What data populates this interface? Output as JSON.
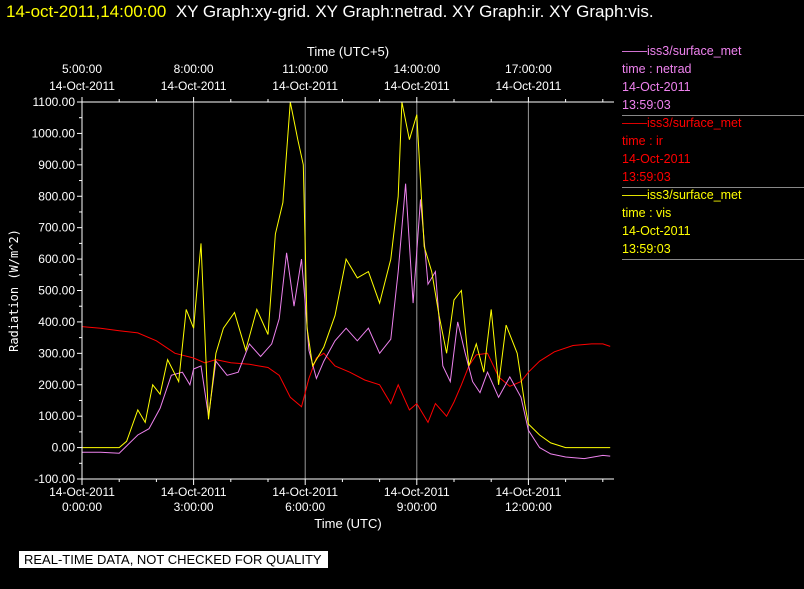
{
  "header": {
    "timestamp": "14-oct-2011,14:00:00",
    "graph_list": "XY Graph:xy-grid.  XY Graph:netrad.  XY Graph:ir.  XY Graph:vis."
  },
  "banner": "REAL-TIME DATA, NOT CHECKED FOR QUALITY",
  "chart_data": {
    "type": "line",
    "title": "",
    "xlabel": "Time (UTC)",
    "x2label": "Time (UTC+5)",
    "ylabel": "Radiation (W/m^2)",
    "xlim": [
      0,
      14.3
    ],
    "ylim": [
      -100,
      1100
    ],
    "grid": true,
    "legend_position": "right",
    "y_ticks": [
      "1100.00",
      "1000.00",
      "900.00",
      "800.00",
      "700.00",
      "600.00",
      "500.00",
      "400.00",
      "300.00",
      "200.00",
      "100.00",
      "0.00",
      "-100.00"
    ],
    "y_tick_values": [
      1100,
      1000,
      900,
      800,
      700,
      600,
      500,
      400,
      300,
      200,
      100,
      0,
      -100
    ],
    "x_ticks": [
      {
        "h": 0,
        "date": "14-Oct-2011",
        "time": "0:00:00"
      },
      {
        "h": 3,
        "date": "14-Oct-2011",
        "time": "3:00:00"
      },
      {
        "h": 6,
        "date": "14-Oct-2011",
        "time": "6:00:00"
      },
      {
        "h": 9,
        "date": "14-Oct-2011",
        "time": "9:00:00"
      },
      {
        "h": 12,
        "date": "14-Oct-2011",
        "time": "12:00:00"
      }
    ],
    "x2_ticks": [
      {
        "h": 0,
        "time": "5:00:00",
        "date": "14-Oct-2011"
      },
      {
        "h": 3,
        "time": "8:00:00",
        "date": "14-Oct-2011"
      },
      {
        "h": 6,
        "time": "11:00:00",
        "date": "14-Oct-2011"
      },
      {
        "h": 9,
        "time": "14:00:00",
        "date": "14-Oct-2011"
      },
      {
        "h": 12,
        "time": "17:00:00",
        "date": "14-Oct-2011"
      }
    ],
    "series": [
      {
        "color": "#ff0000",
        "legend": [
          "——iss3/surface_met",
          "time : ir",
          "14-Oct-2011",
          "13:59:03"
        ],
        "points": [
          [
            0,
            385
          ],
          [
            0.5,
            380
          ],
          [
            1,
            372
          ],
          [
            1.5,
            365
          ],
          [
            2,
            340
          ],
          [
            2.5,
            300
          ],
          [
            3,
            285
          ],
          [
            3.3,
            270
          ],
          [
            3.6,
            280
          ],
          [
            4,
            270
          ],
          [
            4.5,
            265
          ],
          [
            5,
            255
          ],
          [
            5.3,
            230
          ],
          [
            5.6,
            160
          ],
          [
            5.9,
            130
          ],
          [
            6.1,
            220
          ],
          [
            6.3,
            285
          ],
          [
            6.5,
            300
          ],
          [
            6.8,
            260
          ],
          [
            7.2,
            240
          ],
          [
            7.6,
            215
          ],
          [
            8,
            200
          ],
          [
            8.3,
            140
          ],
          [
            8.5,
            200
          ],
          [
            8.8,
            120
          ],
          [
            9,
            140
          ],
          [
            9.3,
            80
          ],
          [
            9.5,
            140
          ],
          [
            9.8,
            100
          ],
          [
            10,
            145
          ],
          [
            10.2,
            200
          ],
          [
            10.4,
            260
          ],
          [
            10.6,
            295
          ],
          [
            10.9,
            300
          ],
          [
            11.2,
            225
          ],
          [
            11.5,
            195
          ],
          [
            11.8,
            210
          ],
          [
            12,
            240
          ],
          [
            12.3,
            275
          ],
          [
            12.7,
            305
          ],
          [
            13.2,
            325
          ],
          [
            13.7,
            330
          ],
          [
            14.0,
            330
          ],
          [
            14.2,
            322
          ]
        ]
      },
      {
        "color": "#ee82ee",
        "legend": [
          "——iss3/surface_met",
          "time : netrad",
          "14-Oct-2011",
          "13:59:03"
        ],
        "points": [
          [
            0,
            -15
          ],
          [
            0.5,
            -15
          ],
          [
            1,
            -18
          ],
          [
            1.2,
            5
          ],
          [
            1.5,
            40
          ],
          [
            1.8,
            60
          ],
          [
            2.1,
            125
          ],
          [
            2.4,
            230
          ],
          [
            2.7,
            240
          ],
          [
            2.9,
            200
          ],
          [
            3.0,
            250
          ],
          [
            3.2,
            260
          ],
          [
            3.4,
            100
          ],
          [
            3.6,
            275
          ],
          [
            3.9,
            230
          ],
          [
            4.2,
            240
          ],
          [
            4.5,
            330
          ],
          [
            4.8,
            290
          ],
          [
            5.1,
            330
          ],
          [
            5.3,
            410
          ],
          [
            5.5,
            620
          ],
          [
            5.7,
            450
          ],
          [
            5.9,
            600
          ],
          [
            6.0,
            460
          ],
          [
            6.1,
            310
          ],
          [
            6.3,
            220
          ],
          [
            6.5,
            275
          ],
          [
            6.8,
            340
          ],
          [
            7.1,
            380
          ],
          [
            7.4,
            340
          ],
          [
            7.7,
            380
          ],
          [
            8.0,
            300
          ],
          [
            8.3,
            345
          ],
          [
            8.5,
            560
          ],
          [
            8.7,
            840
          ],
          [
            8.9,
            460
          ],
          [
            9.1,
            790
          ],
          [
            9.3,
            520
          ],
          [
            9.5,
            560
          ],
          [
            9.7,
            260
          ],
          [
            9.9,
            210
          ],
          [
            10.1,
            400
          ],
          [
            10.3,
            300
          ],
          [
            10.5,
            210
          ],
          [
            10.7,
            175
          ],
          [
            10.9,
            240
          ],
          [
            11.2,
            160
          ],
          [
            11.5,
            225
          ],
          [
            11.8,
            160
          ],
          [
            12,
            55
          ],
          [
            12.3,
            0
          ],
          [
            12.6,
            -20
          ],
          [
            13.0,
            -30
          ],
          [
            13.5,
            -35
          ],
          [
            14.0,
            -25
          ],
          [
            14.2,
            -27
          ]
        ]
      },
      {
        "color": "#ffff00",
        "legend": [
          "——iss3/surface_met",
          "time : vis",
          "14-Oct-2011",
          "13:59:03"
        ],
        "points": [
          [
            0,
            0
          ],
          [
            0.5,
            0
          ],
          [
            1,
            0
          ],
          [
            1.2,
            20
          ],
          [
            1.5,
            120
          ],
          [
            1.7,
            80
          ],
          [
            1.9,
            200
          ],
          [
            2.1,
            170
          ],
          [
            2.3,
            280
          ],
          [
            2.6,
            210
          ],
          [
            2.8,
            440
          ],
          [
            3.0,
            380
          ],
          [
            3.2,
            650
          ],
          [
            3.4,
            90
          ],
          [
            3.6,
            300
          ],
          [
            3.8,
            380
          ],
          [
            4.1,
            430
          ],
          [
            4.4,
            310
          ],
          [
            4.7,
            440
          ],
          [
            5.0,
            360
          ],
          [
            5.2,
            680
          ],
          [
            5.4,
            780
          ],
          [
            5.6,
            1100
          ],
          [
            5.8,
            980
          ],
          [
            5.95,
            900
          ],
          [
            6.05,
            380
          ],
          [
            6.2,
            260
          ],
          [
            6.5,
            320
          ],
          [
            6.8,
            420
          ],
          [
            7.1,
            600
          ],
          [
            7.4,
            540
          ],
          [
            7.7,
            560
          ],
          [
            8.0,
            460
          ],
          [
            8.3,
            600
          ],
          [
            8.5,
            800
          ],
          [
            8.6,
            1100
          ],
          [
            8.8,
            980
          ],
          [
            9.0,
            1060
          ],
          [
            9.2,
            640
          ],
          [
            9.4,
            560
          ],
          [
            9.6,
            420
          ],
          [
            9.8,
            300
          ],
          [
            10.0,
            470
          ],
          [
            10.2,
            500
          ],
          [
            10.4,
            260
          ],
          [
            10.6,
            330
          ],
          [
            10.8,
            240
          ],
          [
            11.0,
            440
          ],
          [
            11.2,
            200
          ],
          [
            11.4,
            390
          ],
          [
            11.7,
            300
          ],
          [
            11.9,
            140
          ],
          [
            12.0,
            75
          ],
          [
            12.3,
            40
          ],
          [
            12.6,
            15
          ],
          [
            13.0,
            0
          ],
          [
            13.5,
            0
          ],
          [
            14.0,
            0
          ],
          [
            14.2,
            0
          ]
        ]
      }
    ]
  },
  "style": {
    "background": "#000000",
    "axis": "#ffffff",
    "grid": "#999999"
  }
}
